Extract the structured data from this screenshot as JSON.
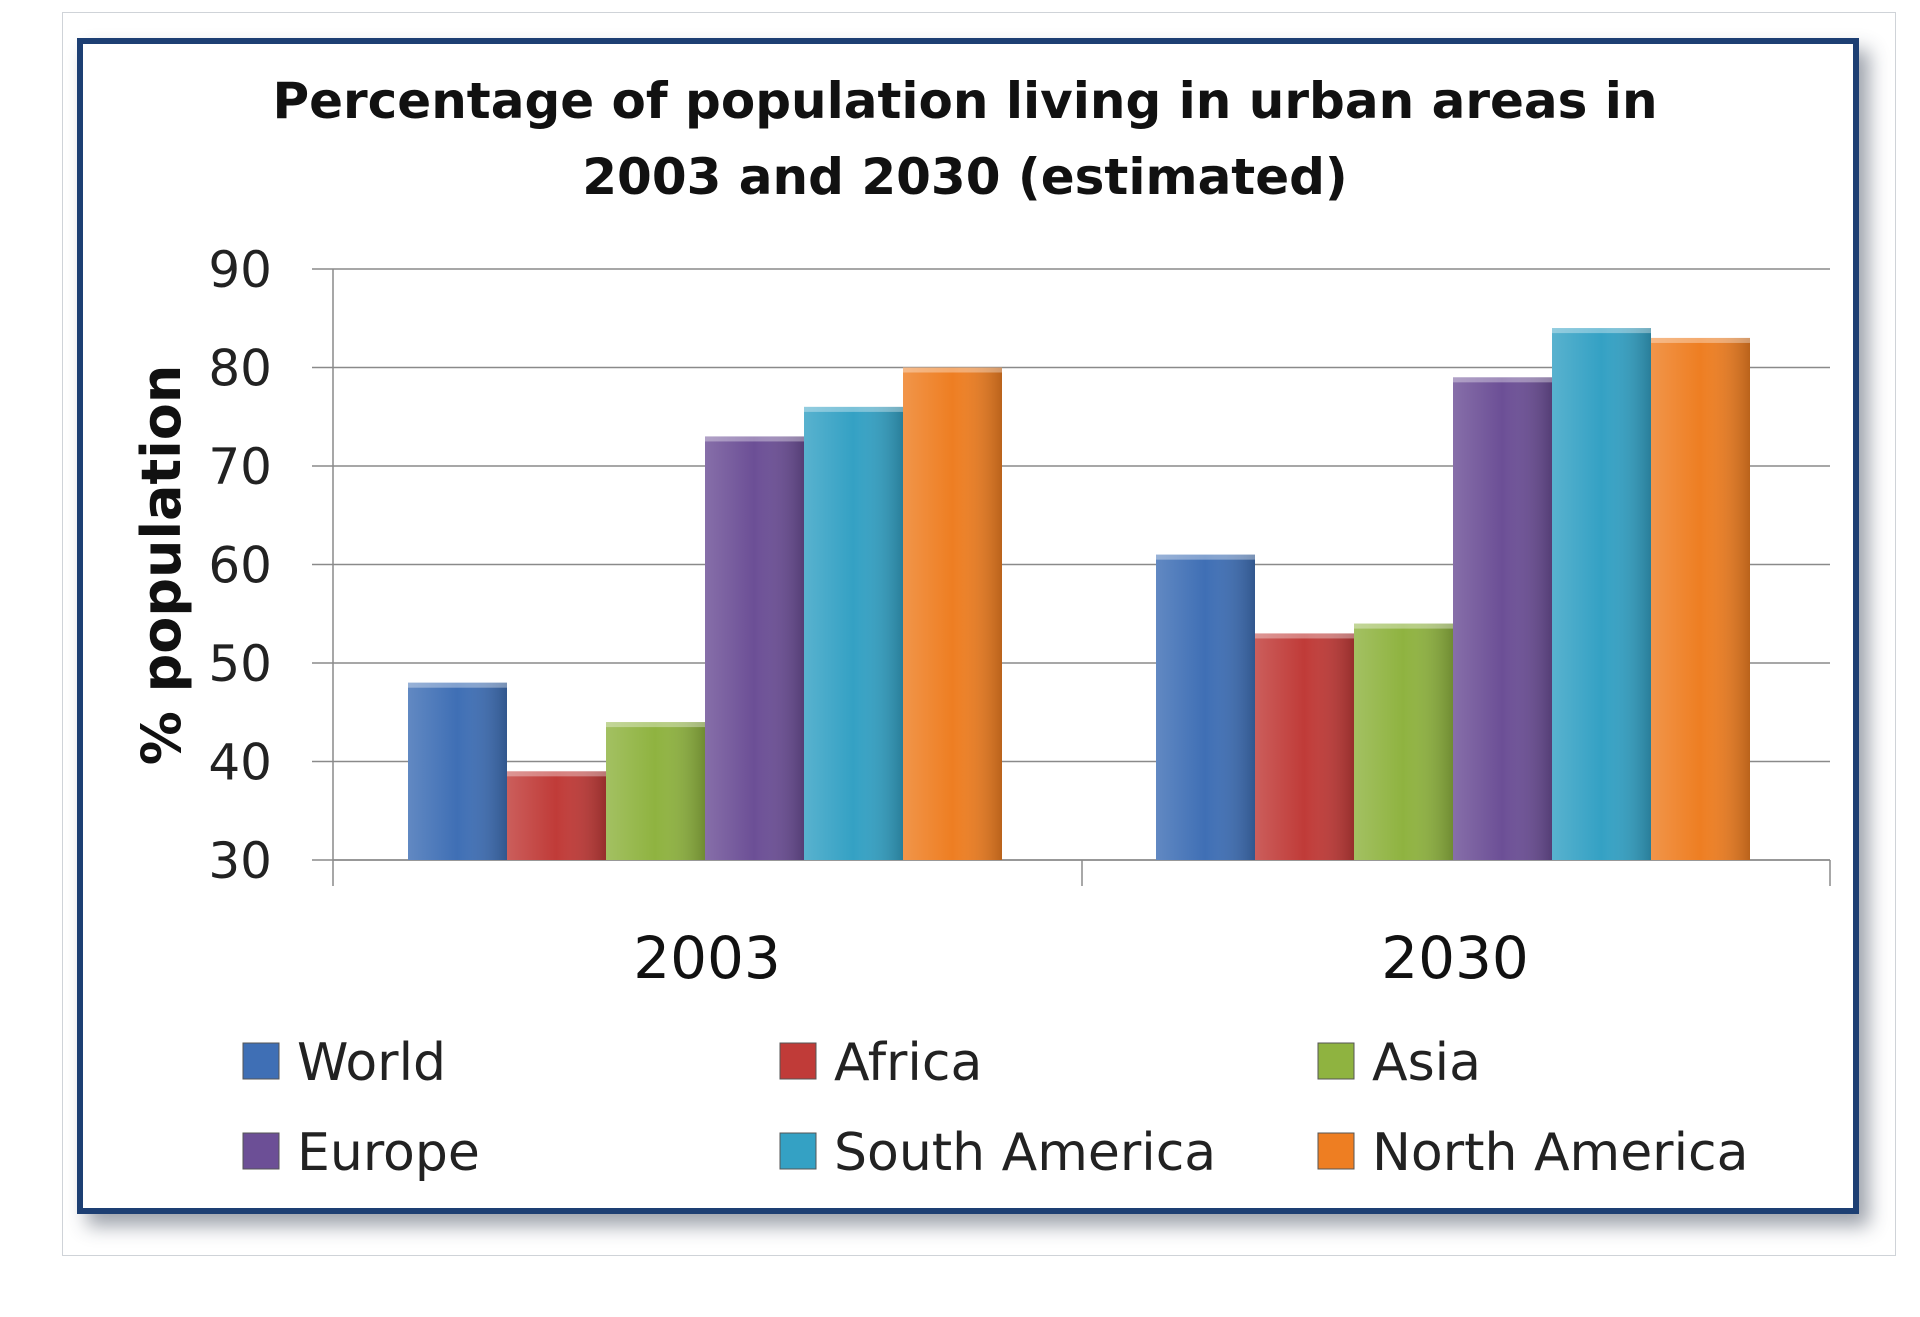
{
  "chart_data": {
    "type": "bar",
    "title_line1": "Percentage of population living in urban areas in",
    "title_line2": "2003 and 2030 (estimated)",
    "xlabel": "",
    "ylabel": "% population",
    "ylim": [
      30,
      90
    ],
    "yticks": [
      "90",
      "80",
      "70",
      "60",
      "50",
      "40",
      "30"
    ],
    "grid": true,
    "legend_position": "bottom",
    "categories": [
      "2003",
      "2030"
    ],
    "series": [
      {
        "name": "World",
        "color": "#3f6fb5",
        "values": [
          48,
          61
        ]
      },
      {
        "name": "Africa",
        "color": "#c03b38",
        "values": [
          39,
          53
        ]
      },
      {
        "name": "Asia",
        "color": "#8fb340",
        "values": [
          44,
          54
        ]
      },
      {
        "name": "Europe",
        "color": "#6c4f96",
        "values": [
          73,
          79
        ]
      },
      {
        "name": "South America",
        "color": "#34a1c4",
        "values": [
          76,
          84
        ]
      },
      {
        "name": "North America",
        "color": "#ee7e22",
        "values": [
          80,
          83
        ]
      }
    ]
  }
}
